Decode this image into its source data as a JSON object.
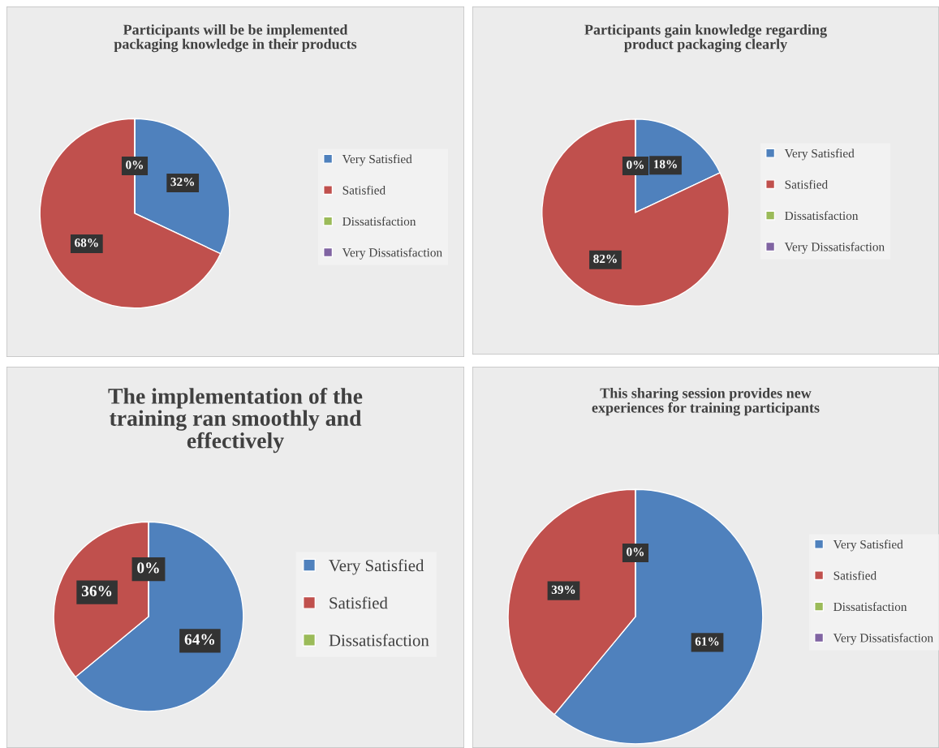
{
  "chart_data": [
    {
      "type": "pie",
      "title": "Participants will be be implemented\npackaging knowledge in their products",
      "categories": [
        "Very Satisfied",
        "Satisfied",
        "Dissatisfaction",
        "Very Dissatisfaction"
      ],
      "values": [
        32,
        68,
        0,
        0
      ],
      "value_labels": [
        "32%",
        "68%",
        "0%",
        null
      ],
      "colors": [
        "#4f81bd",
        "#c0504d",
        "#9bbb59",
        "#8064a2"
      ],
      "legend": "right"
    },
    {
      "type": "pie",
      "title": "Participants gain knowledge regarding\nproduct packaging clearly",
      "categories": [
        "Very Satisfied",
        "Satisfied",
        "Dissatisfaction",
        "Very Dissatisfaction"
      ],
      "values": [
        18,
        82,
        0,
        0
      ],
      "value_labels": [
        "18%",
        "82%",
        "0%",
        null
      ],
      "colors": [
        "#4f81bd",
        "#c0504d",
        "#9bbb59",
        "#8064a2"
      ],
      "legend": "right"
    },
    {
      "type": "pie",
      "title": "The implementation of the\ntraining ran smoothly and\neffectively",
      "categories": [
        "Very Satisfied",
        "Satisfied",
        "Dissatisfaction"
      ],
      "values": [
        64,
        36,
        0
      ],
      "value_labels": [
        "64%",
        "36%",
        "0%"
      ],
      "colors": [
        "#4f81bd",
        "#c0504d",
        "#9bbb59"
      ],
      "legend": "right"
    },
    {
      "type": "pie",
      "title": "This sharing session provides new\nexperiences for training participants",
      "categories": [
        "Very Satisfied",
        "Satisfied",
        "Dissatisfaction",
        "Very Dissatisfaction"
      ],
      "values": [
        61,
        39,
        0,
        0
      ],
      "value_labels": [
        "61%",
        "39%",
        "0%",
        null
      ],
      "colors": [
        "#4f81bd",
        "#c0504d",
        "#9bbb59",
        "#8064a2"
      ],
      "legend": "right"
    }
  ]
}
